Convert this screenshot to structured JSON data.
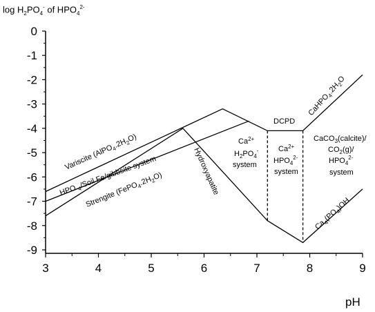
{
  "chart_data": {
    "type": "line",
    "title": "",
    "ylabel_parts": [
      "log H",
      "2",
      "PO",
      "4",
      "-",
      " of HPO",
      "4",
      "2-"
    ],
    "xlabel": "pH",
    "xlim": [
      3,
      9
    ],
    "ylim": [
      -9,
      0
    ],
    "xticks": [
      3,
      4,
      5,
      6,
      7,
      8,
      9
    ],
    "yticks": [
      0,
      -1,
      -2,
      -3,
      -4,
      -5,
      -6,
      -7,
      -8,
      -9
    ],
    "yticklabels": [
      "0",
      "-1",
      "-2",
      "-3",
      "-4",
      "-5",
      "-6",
      "-7",
      "-8",
      "-9"
    ],
    "series": [
      {
        "label": "variscite",
        "points": [
          [
            3.0,
            -6.6
          ],
          [
            6.35,
            -3.2
          ],
          [
            7.2,
            -4.1
          ],
          [
            7.87,
            -4.1
          ],
          [
            9.0,
            -1.8
          ]
        ]
      },
      {
        "label": "hpo4-soil-fe",
        "points": [
          [
            3.0,
            -7.0
          ],
          [
            6.85,
            -3.7
          ]
        ]
      },
      {
        "label": "strengite",
        "points": [
          [
            3.0,
            -7.6
          ],
          [
            5.6,
            -4.0
          ]
        ]
      },
      {
        "label": "hydroxyapatite",
        "points": [
          [
            5.6,
            -4.0
          ],
          [
            7.2,
            -7.8
          ],
          [
            7.87,
            -8.7
          ],
          [
            9.0,
            -6.5
          ]
        ]
      },
      {
        "label": "dcpd-left-boundary",
        "dashed": true,
        "points": [
          [
            7.2,
            -4.1
          ],
          [
            7.2,
            -7.8
          ]
        ]
      },
      {
        "label": "dcpd-right-boundary",
        "dashed": true,
        "points": [
          [
            7.87,
            -4.1
          ],
          [
            7.87,
            -8.7
          ]
        ]
      }
    ],
    "annotations": {
      "variscite": {
        "text": "Variscite (AlPO",
        "sub1": "4",
        "mid": ".2H",
        "sub2": "2",
        "tail": "O)"
      },
      "hpo4": {
        "text": "HPO ",
        "sub1": "4",
        "tail": "/Soil Fe/gibbsite system"
      },
      "strengite": {
        "text": "Strengite (FePO",
        "sub1": "4",
        "mid": ".2H",
        "sub2": "2",
        "tail": "O)"
      },
      "hydroxyapatite": "Hydroxyapatite",
      "dcpd": "DCPD",
      "cahpo4": {
        "text": "CaHPO",
        "sub1": "4",
        "mid": ".2H",
        "sub2": "2",
        "tail": "O"
      },
      "ca4": {
        "text": "Ca",
        "sub1": "4",
        "mid": "(PO",
        "sub2": "4",
        "tail": ")OH"
      },
      "ca_h2po4": {
        "l1": "Ca",
        "l1sup": "2+",
        "l2": "H",
        "l2sub": "2",
        "l2b": "PO",
        "l2sub2": "4",
        "l2sup": "-",
        "l3": "system"
      },
      "ca_hpo4": {
        "l1": "Ca",
        "l1sup": "2+",
        "l2": "HPO",
        "l2sub": "4",
        "l2sup": "2-",
        "l3": "system"
      },
      "caco3": {
        "l1a": "CaCO",
        "l1sub": "3",
        "l1b": "(calcite)/",
        "l2a": "CO",
        "l2sub": "2",
        "l2b": "(g)/",
        "l3": "HPO",
        "l3sub": "4",
        "l3sup": "2-",
        "l4": "system"
      }
    }
  }
}
